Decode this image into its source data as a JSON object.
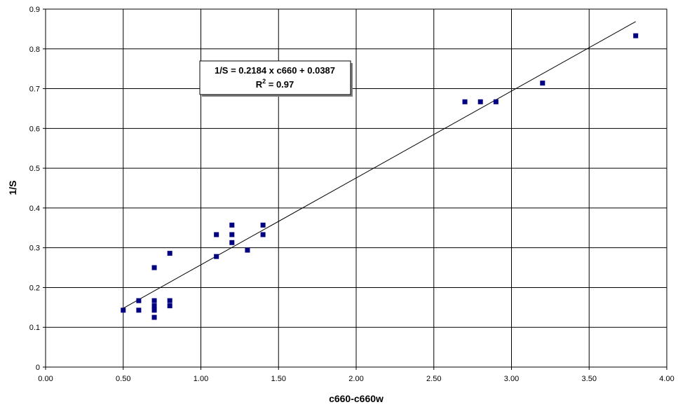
{
  "chart_data": {
    "type": "scatter",
    "xlabel": "c660-c660w",
    "ylabel": "1/S",
    "xlim": [
      0,
      4
    ],
    "ylim": [
      0,
      0.9
    ],
    "x_ticks": [
      "0.00",
      "0.50",
      "1.00",
      "1.50",
      "2.00",
      "2.50",
      "3.00",
      "3.50",
      "4.00"
    ],
    "y_ticks": [
      "0",
      "0.1",
      "0.2",
      "0.3",
      "0.4",
      "0.5",
      "0.6",
      "0.7",
      "0.8",
      "0.9"
    ],
    "grid": true,
    "legend": "none",
    "marker_color": "#000080",
    "series": [
      {
        "points": [
          [
            0.5,
            0.143
          ],
          [
            0.6,
            0.143
          ],
          [
            0.6,
            0.167
          ],
          [
            0.7,
            0.125
          ],
          [
            0.7,
            0.143
          ],
          [
            0.7,
            0.154
          ],
          [
            0.7,
            0.167
          ],
          [
            0.7,
            0.25
          ],
          [
            0.8,
            0.154
          ],
          [
            0.8,
            0.167
          ],
          [
            0.8,
            0.286
          ],
          [
            1.1,
            0.278
          ],
          [
            1.1,
            0.333
          ],
          [
            1.2,
            0.313
          ],
          [
            1.2,
            0.333
          ],
          [
            1.2,
            0.357
          ],
          [
            1.3,
            0.294
          ],
          [
            1.4,
            0.333
          ],
          [
            1.4,
            0.357
          ],
          [
            2.7,
            0.667
          ],
          [
            2.8,
            0.667
          ],
          [
            2.9,
            0.667
          ],
          [
            3.2,
            0.714
          ],
          [
            3.8,
            0.833
          ]
        ]
      }
    ],
    "trendline": {
      "slope": 0.2184,
      "intercept": 0.0387,
      "x_range": [
        0.5,
        3.8
      ]
    },
    "annotation": {
      "line1": "1/S = 0.2184 x c660 + 0.0387",
      "line2_prefix": "R",
      "line2_sup": "2",
      "line2_suffix": " = 0.97"
    }
  }
}
